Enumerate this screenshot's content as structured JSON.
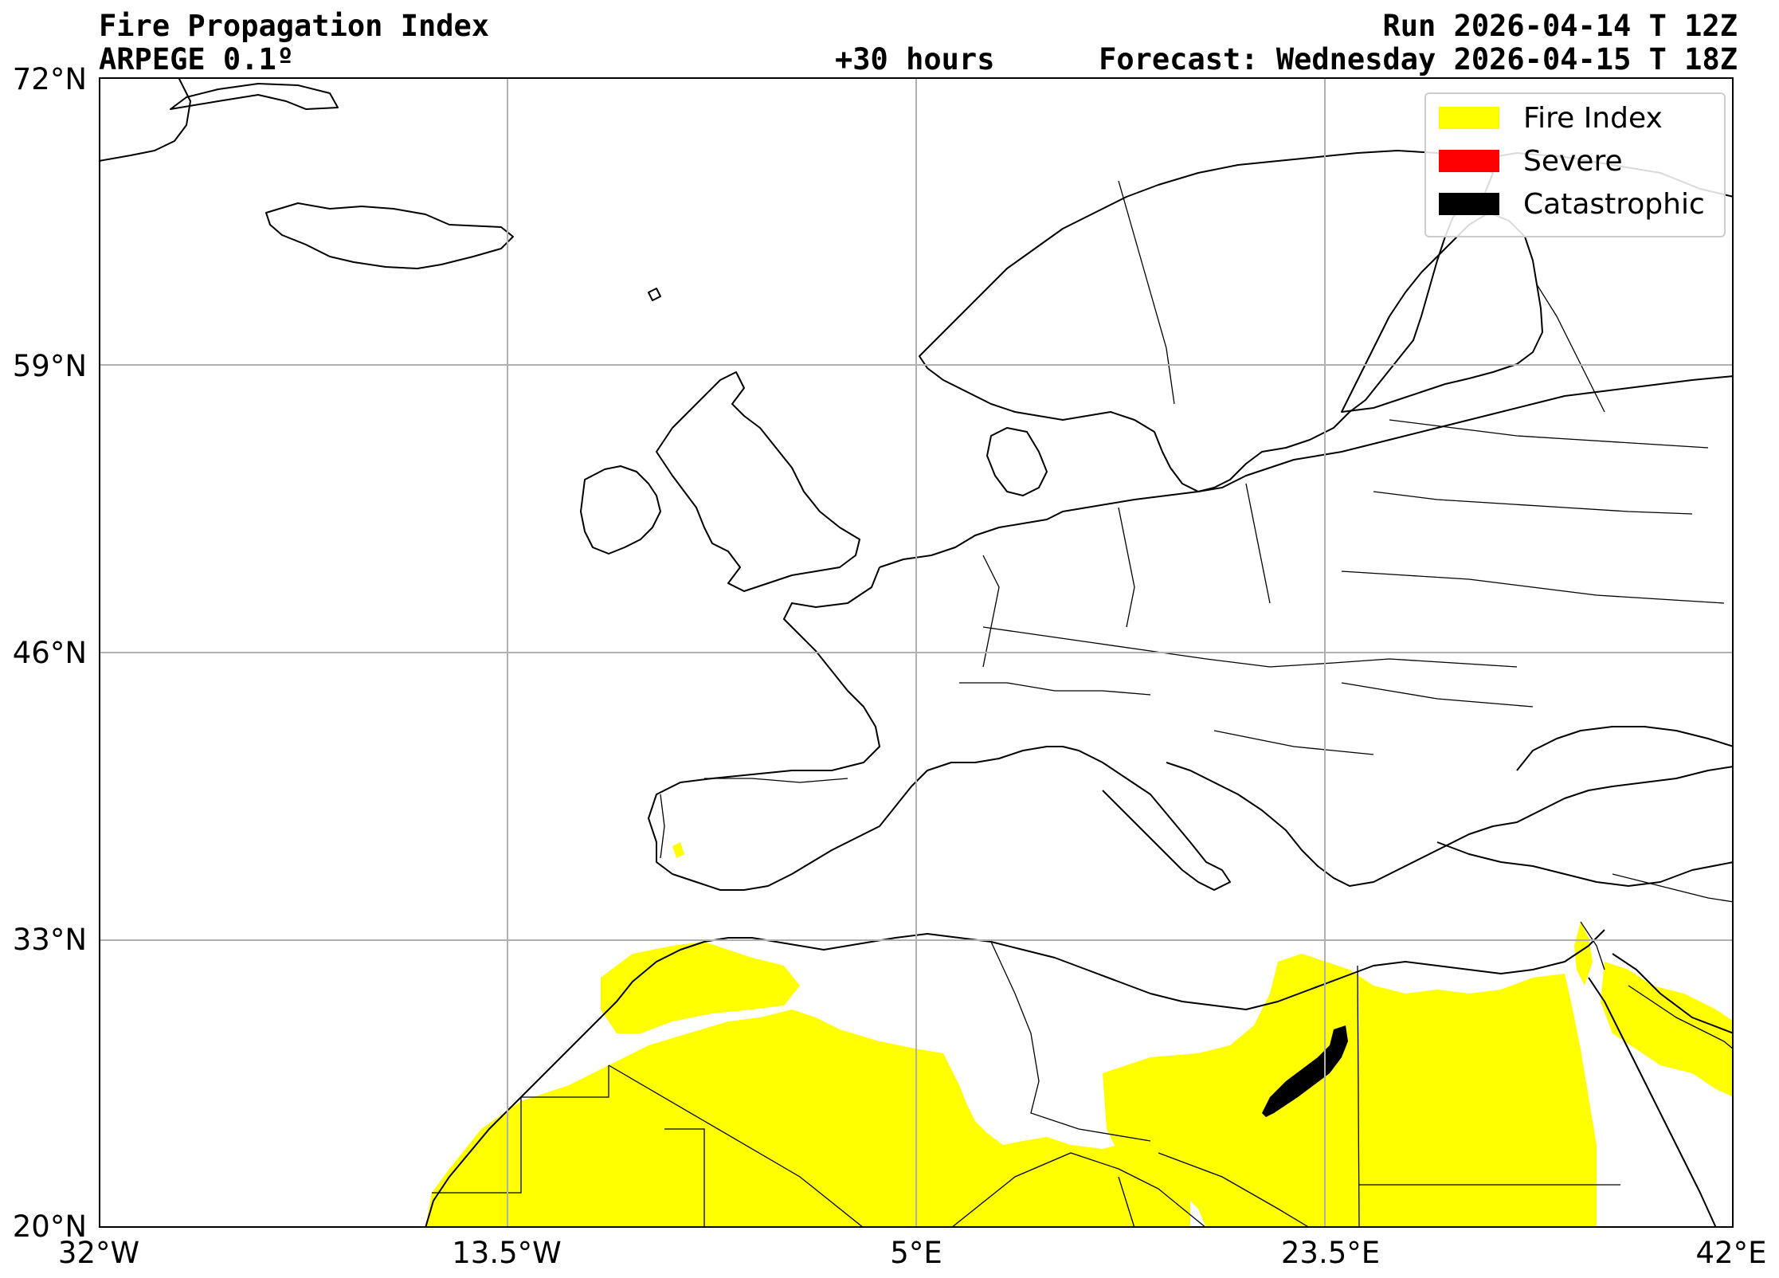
{
  "header": {
    "title": "Fire Propagation Index",
    "model": "ARPEGE 0.1º",
    "run": "Run 2026-04-14 T 12Z",
    "lead_time": "+30 hours",
    "forecast": "Forecast: Wednesday 2026-04-15 T 18Z"
  },
  "axes": {
    "lat_ticks": [
      "72°N",
      "59°N",
      "46°N",
      "33°N",
      "20°N"
    ],
    "lon_ticks": [
      "32°W",
      "13.5°W",
      "5°E",
      "23.5°E",
      "42°E"
    ],
    "lat_range": [
      20,
      72
    ],
    "lon_range": [
      -32,
      42
    ],
    "grid": true
  },
  "legend": {
    "placement": "top-right",
    "items": [
      {
        "label": "Fire Index",
        "color": "#ffff00"
      },
      {
        "label": "Severe",
        "color": "#ff0000"
      },
      {
        "label": "Catastrophic",
        "color": "#000000"
      }
    ]
  },
  "colors": {
    "fire_index": "#ffff00",
    "severe": "#ff0000",
    "catastrophic": "#000000",
    "grid": "#b0b0b0",
    "coastline": "#000000"
  }
}
